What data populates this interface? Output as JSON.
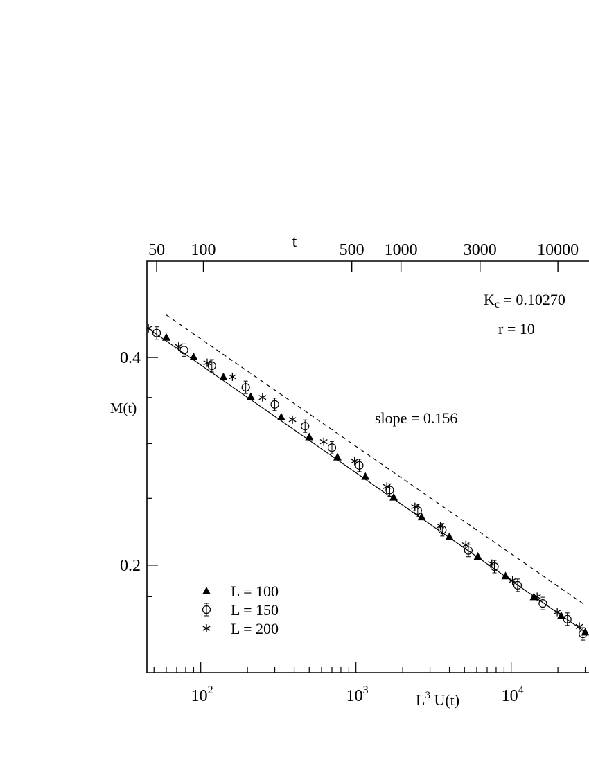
{
  "chart_data": {
    "type": "scatter",
    "x_scale": "log",
    "y_scale": "log",
    "xlim": [
      45,
      30000
    ],
    "ylim": [
      0.16,
      0.46
    ],
    "top_axis": {
      "label": "t",
      "ticks": [
        {
          "label": "50",
          "x": 52
        },
        {
          "label": "100",
          "x": 104
        },
        {
          "label": "500",
          "x": 940
        },
        {
          "label": "1000",
          "x": 1950
        },
        {
          "label": "3000",
          "x": 6300
        },
        {
          "label": "10000",
          "x": 20000
        }
      ]
    },
    "bottom_axis": {
      "xlabel_base": "L",
      "xlabel_sup": "3",
      "xlabel_tail": " U(t)",
      "ticks": [
        {
          "base": "10",
          "exp": "2",
          "x": 100
        },
        {
          "base": "10",
          "exp": "3",
          "x": 1000
        },
        {
          "base": "10",
          "exp": "4",
          "x": 10000
        }
      ]
    },
    "ylabel": "M(t)",
    "y_major_ticks": [
      {
        "label": "0.4",
        "y": 0.4
      },
      {
        "label": "0.2",
        "y": 0.2
      }
    ],
    "y_minor_ticks": [
      0.18,
      0.25,
      0.3,
      0.35
    ],
    "annotations": {
      "kc_main": "K",
      "kc_sub": "c",
      "kc_value": " = 0.10270",
      "r": "r = 10",
      "slope": "slope = 0.156"
    },
    "fit_line": {
      "style": "solid",
      "x": [
        45,
        30000
      ],
      "y": [
        0.442,
        0.16
      ]
    },
    "reference_line": {
      "style": "dashed",
      "x": [
        60,
        30000
      ],
      "y": [
        0.461,
        0.175
      ]
    },
    "series": [
      {
        "name": "L = 100",
        "marker": "filled-triangle",
        "x": [
          60,
          90,
          140,
          210,
          330,
          500,
          760,
          1150,
          1750,
          2650,
          4000,
          6100,
          9200,
          14000,
          21000,
          30000
        ],
        "y": [
          0.428,
          0.401,
          0.375,
          0.351,
          0.328,
          0.307,
          0.287,
          0.269,
          0.251,
          0.235,
          0.22,
          0.206,
          0.193,
          0.18,
          0.169,
          0.16
        ]
      },
      {
        "name": "L = 150",
        "marker": "open-circle",
        "x": [
          52,
          78,
          118,
          195,
          300,
          470,
          700,
          1050,
          1650,
          2500,
          3600,
          5300,
          7800,
          11000,
          16000,
          23000,
          29000
        ],
        "y": [
          0.434,
          0.41,
          0.389,
          0.362,
          0.342,
          0.318,
          0.296,
          0.279,
          0.257,
          0.24,
          0.225,
          0.21,
          0.199,
          0.187,
          0.176,
          0.167,
          0.159
        ]
      },
      {
        "name": "L = 200",
        "marker": "asterisk",
        "x": [
          46,
          72,
          110,
          160,
          250,
          390,
          620,
          980,
          1580,
          2400,
          3500,
          5100,
          7500,
          10200,
          14700,
          19800,
          27500
        ],
        "y": [
          0.441,
          0.415,
          0.393,
          0.375,
          0.35,
          0.325,
          0.302,
          0.283,
          0.26,
          0.243,
          0.228,
          0.214,
          0.201,
          0.19,
          0.18,
          0.171,
          0.163
        ]
      }
    ]
  }
}
